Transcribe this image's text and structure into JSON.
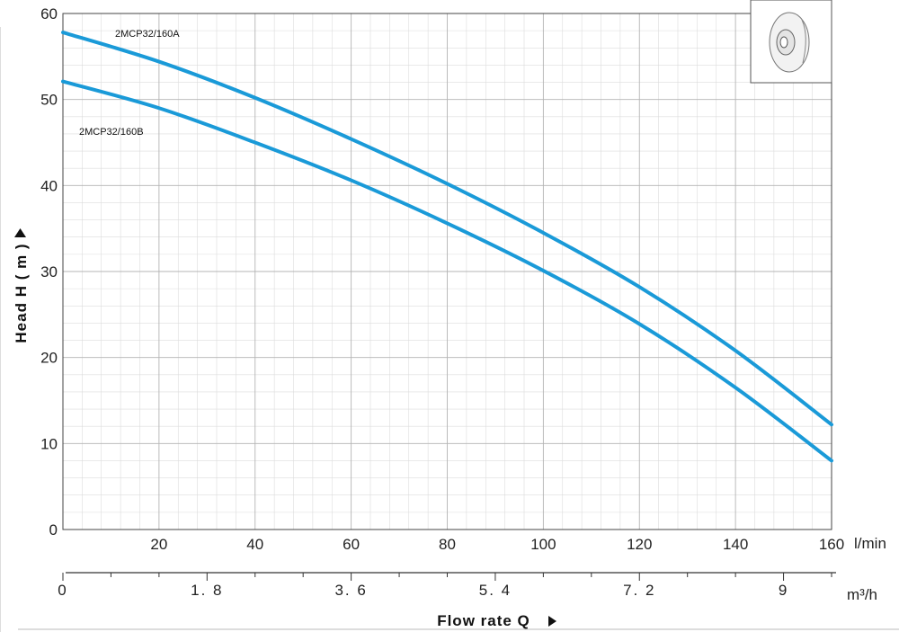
{
  "chart_data": {
    "type": "line",
    "ylabel": "Head H ( m )",
    "xlabel": "Flow rate Q",
    "x_unit_primary": "l/min",
    "x_unit_secondary": "m³/h",
    "xlim": [
      0,
      160
    ],
    "ylim": [
      0,
      60
    ],
    "y_ticks": [
      "0",
      "10",
      "20",
      "30",
      "40",
      "50",
      "60"
    ],
    "x_ticks_lmin": [
      "20",
      "40",
      "60",
      "80",
      "100",
      "120",
      "140",
      "160"
    ],
    "x_ticks_m3h": [
      "0",
      "1.8",
      "3.6",
      "5.4",
      "7.2",
      "9"
    ],
    "grid": true,
    "series_color": "#1a9ad8",
    "series": [
      {
        "name": "2MCP32/160A",
        "x": [
          0,
          20,
          40,
          60,
          80,
          100,
          120,
          140,
          160
        ],
        "values": [
          57.8,
          54.4,
          50.2,
          45.4,
          40.2,
          34.5,
          28.2,
          20.8,
          12.2
        ]
      },
      {
        "name": "2MCP32/160B",
        "x": [
          0,
          20,
          40,
          60,
          80,
          100,
          120,
          140,
          160
        ],
        "values": [
          52.1,
          49.0,
          45.0,
          40.6,
          35.6,
          30.1,
          23.9,
          16.5,
          8.0
        ]
      }
    ]
  }
}
